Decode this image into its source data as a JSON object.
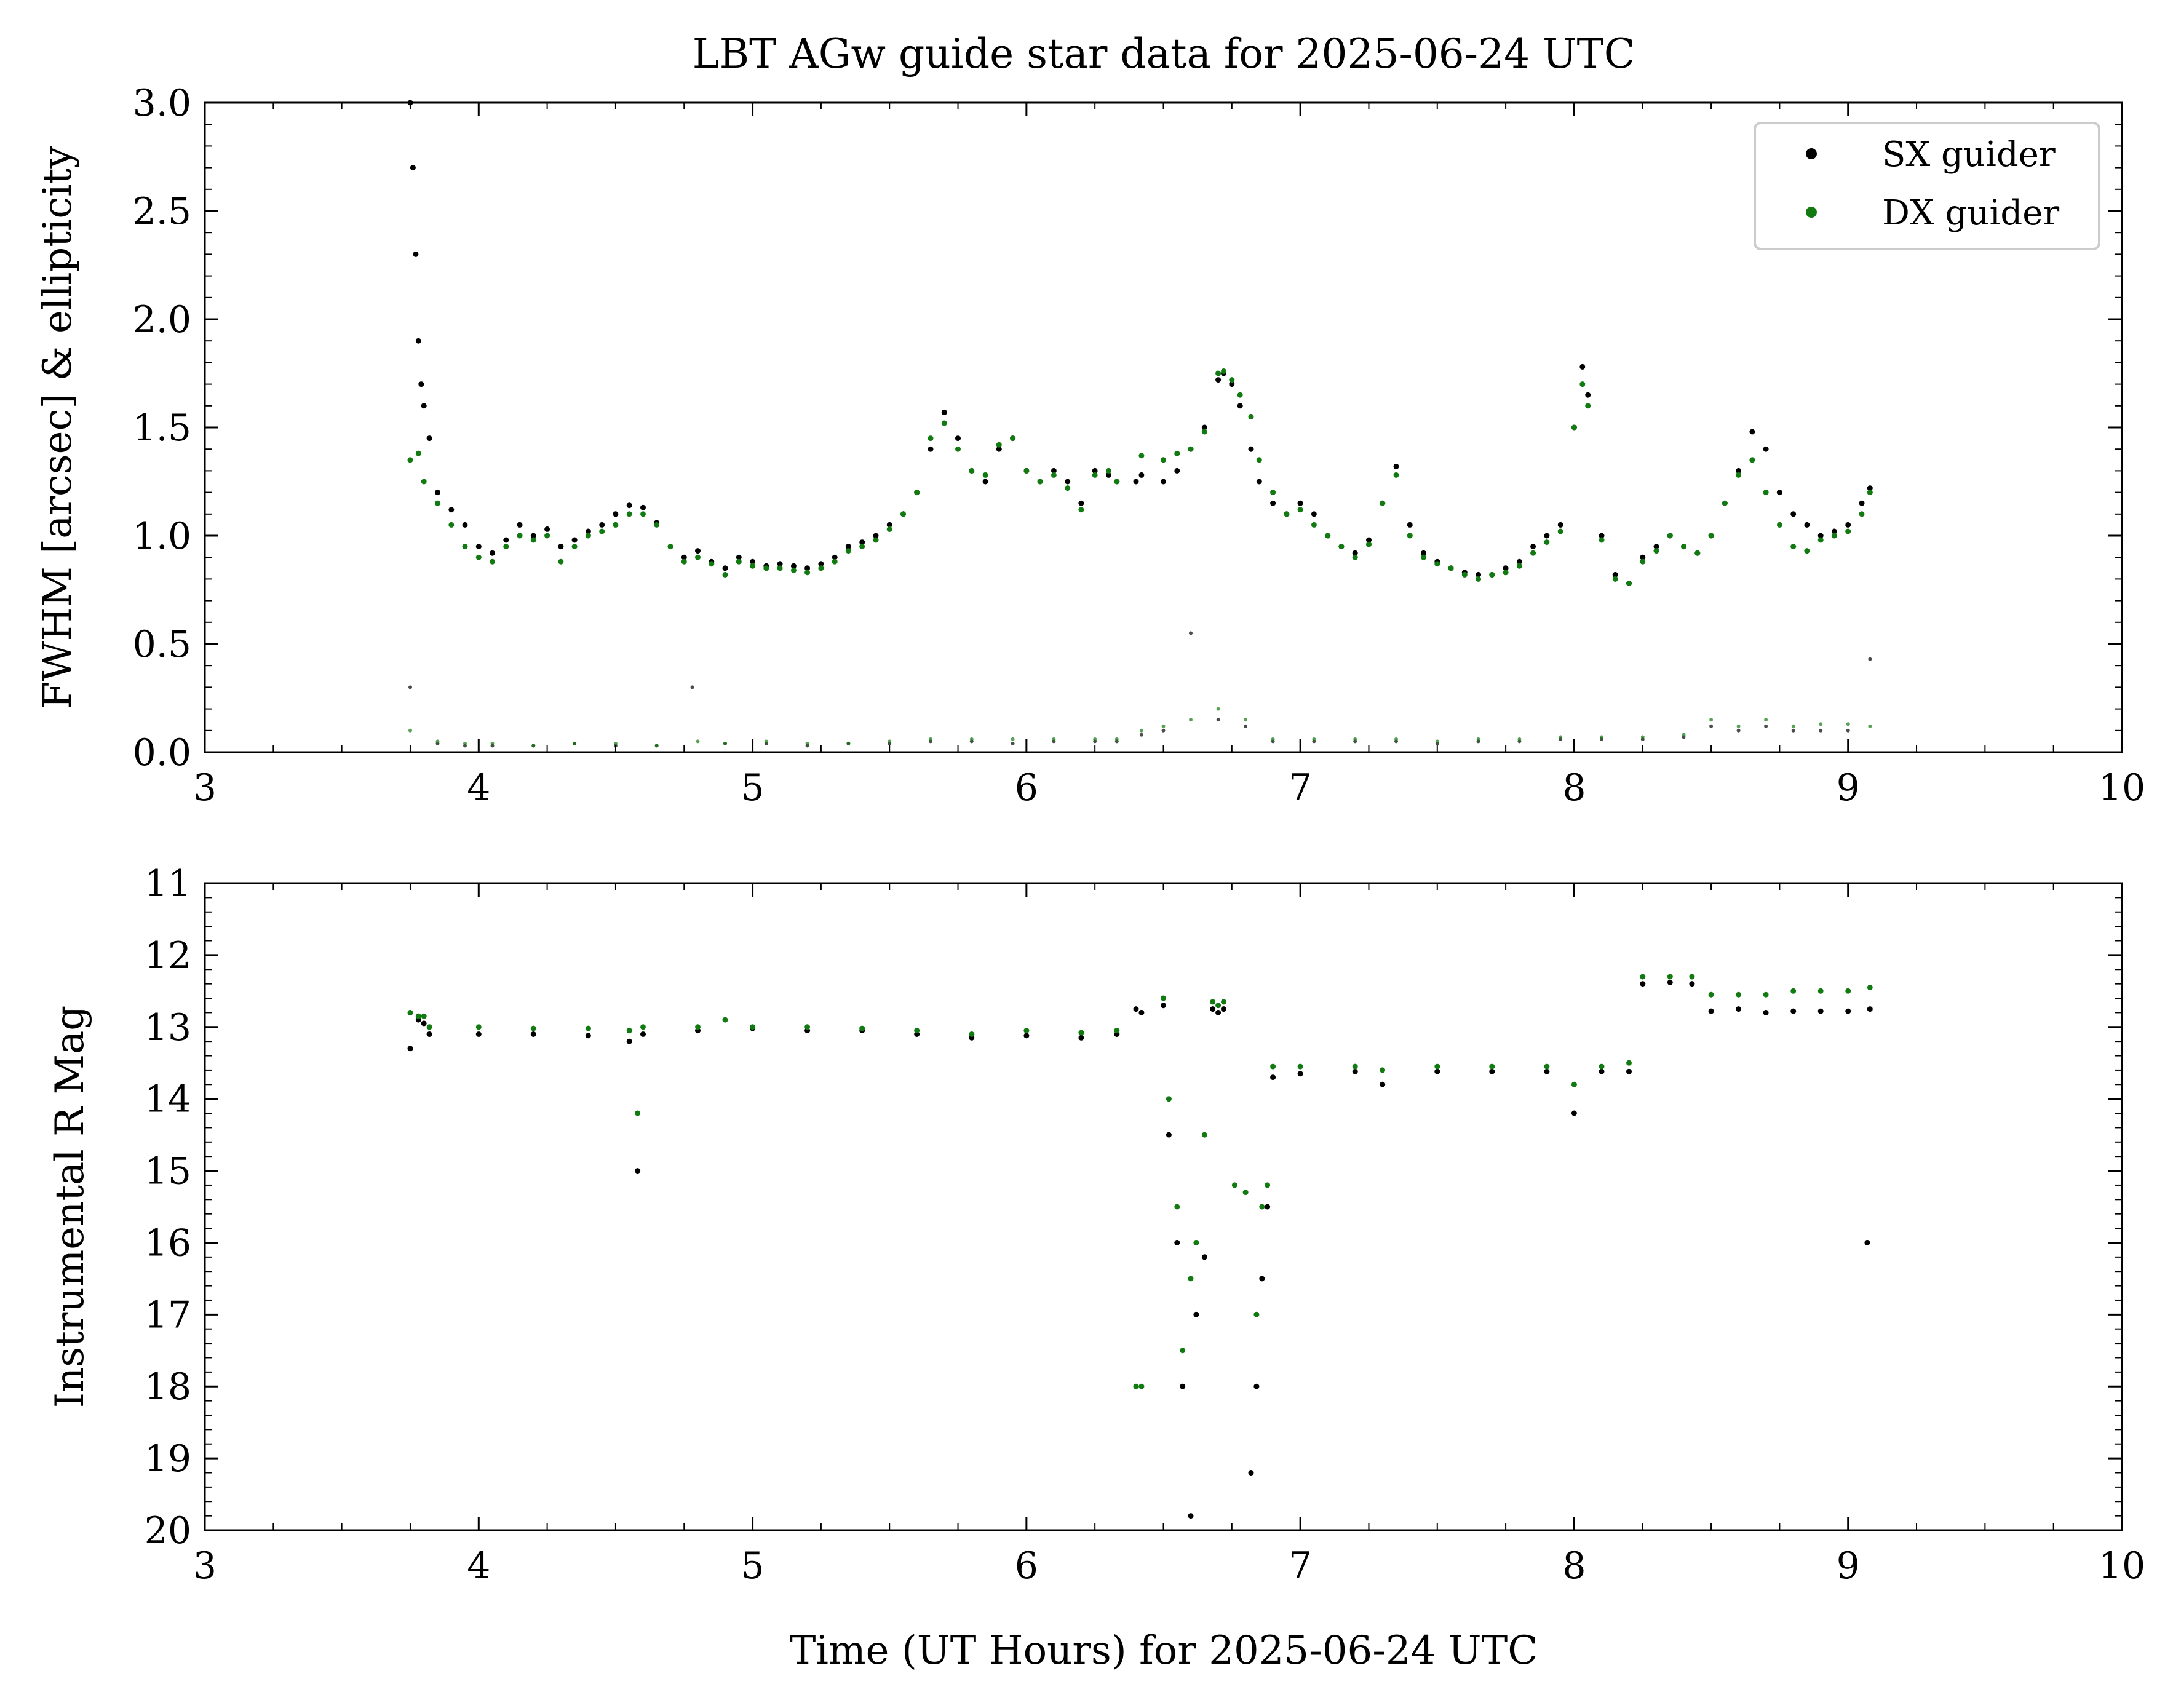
{
  "colors": {
    "sx": "#000000",
    "dx": "#117a11"
  },
  "chart_data": [
    {
      "type": "scatter",
      "title": "LBT AGw guide star data for 2025-06-24 UTC",
      "xlabel": "",
      "ylabel": "FWHM [arcsec] & ellipticity",
      "xlim": [
        3,
        10
      ],
      "ylim": [
        0,
        3.0
      ],
      "xticks": [
        "3",
        "4",
        "5",
        "6",
        "7",
        "8",
        "9",
        "10"
      ],
      "yticks": [
        "0.0",
        "0.5",
        "1.0",
        "1.5",
        "2.0",
        "2.5",
        "3.0"
      ],
      "legend": {
        "position": "top-right",
        "entries": [
          "SX guider",
          "DX guider"
        ]
      },
      "series": [
        {
          "name": "SX guider",
          "metric": "FWHM",
          "x": [
            3.75,
            3.76,
            3.77,
            3.78,
            3.79,
            3.8,
            3.82,
            3.85,
            3.9,
            3.95,
            4.0,
            4.05,
            4.1,
            4.15,
            4.2,
            4.25,
            4.3,
            4.35,
            4.4,
            4.45,
            4.5,
            4.55,
            4.6,
            4.65,
            4.7,
            4.75,
            4.8,
            4.85,
            4.9,
            4.95,
            5.0,
            5.05,
            5.1,
            5.15,
            5.2,
            5.25,
            5.3,
            5.35,
            5.4,
            5.45,
            5.5,
            5.55,
            5.6,
            5.65,
            5.7,
            5.75,
            5.8,
            5.85,
            5.9,
            5.95,
            6.0,
            6.05,
            6.1,
            6.15,
            6.2,
            6.25,
            6.3,
            6.33,
            6.4,
            6.42,
            6.5,
            6.55,
            6.6,
            6.65,
            6.7,
            6.72,
            6.75,
            6.78,
            6.82,
            6.85,
            6.9,
            6.95,
            7.0,
            7.05,
            7.1,
            7.15,
            7.2,
            7.25,
            7.3,
            7.35,
            7.4,
            7.45,
            7.5,
            7.55,
            7.6,
            7.65,
            7.7,
            7.75,
            7.8,
            7.85,
            7.9,
            7.95,
            8.0,
            8.03,
            8.05,
            8.1,
            8.15,
            8.2,
            8.25,
            8.3,
            8.35,
            8.4,
            8.45,
            8.5,
            8.55,
            8.6,
            8.65,
            8.7,
            8.75,
            8.8,
            8.85,
            8.9,
            8.95,
            9.0,
            9.05,
            9.08
          ],
          "y": [
            3.0,
            2.7,
            2.3,
            1.9,
            1.7,
            1.6,
            1.45,
            1.2,
            1.12,
            1.05,
            0.95,
            0.92,
            0.98,
            1.05,
            1.0,
            1.03,
            0.95,
            0.98,
            1.02,
            1.05,
            1.1,
            1.14,
            1.13,
            1.06,
            0.95,
            0.9,
            0.93,
            0.88,
            0.85,
            0.9,
            0.88,
            0.86,
            0.87,
            0.86,
            0.85,
            0.87,
            0.9,
            0.95,
            0.97,
            1.0,
            1.05,
            1.1,
            1.2,
            1.4,
            1.57,
            1.45,
            1.3,
            1.25,
            1.4,
            1.45,
            1.3,
            1.25,
            1.3,
            1.25,
            1.15,
            1.3,
            1.28,
            1.25,
            1.25,
            1.28,
            1.25,
            1.3,
            1.4,
            1.5,
            1.72,
            1.75,
            1.7,
            1.6,
            1.4,
            1.25,
            1.15,
            1.1,
            1.15,
            1.1,
            1.0,
            0.95,
            0.92,
            0.98,
            1.15,
            1.32,
            1.05,
            0.92,
            0.88,
            0.85,
            0.83,
            0.82,
            0.82,
            0.85,
            0.88,
            0.95,
            1.0,
            1.05,
            1.5,
            1.78,
            1.65,
            1.0,
            0.82,
            0.78,
            0.9,
            0.95,
            1.0,
            0.95,
            0.92,
            1.0,
            1.15,
            1.3,
            1.48,
            1.4,
            1.2,
            1.1,
            1.05,
            1.0,
            1.02,
            1.05,
            1.15,
            1.22
          ]
        },
        {
          "name": "DX guider",
          "metric": "FWHM",
          "x": [
            3.75,
            3.78,
            3.8,
            3.85,
            3.9,
            3.95,
            4.0,
            4.05,
            4.1,
            4.15,
            4.2,
            4.25,
            4.3,
            4.35,
            4.4,
            4.45,
            4.5,
            4.55,
            4.6,
            4.65,
            4.7,
            4.75,
            4.8,
            4.85,
            4.9,
            4.95,
            5.0,
            5.05,
            5.1,
            5.15,
            5.2,
            5.25,
            5.3,
            5.35,
            5.4,
            5.45,
            5.5,
            5.55,
            5.6,
            5.65,
            5.7,
            5.75,
            5.8,
            5.85,
            5.9,
            5.95,
            6.0,
            6.05,
            6.1,
            6.15,
            6.2,
            6.25,
            6.3,
            6.33,
            6.42,
            6.5,
            6.55,
            6.6,
            6.65,
            6.7,
            6.72,
            6.75,
            6.78,
            6.82,
            6.85,
            6.9,
            6.95,
            7.0,
            7.05,
            7.1,
            7.15,
            7.2,
            7.25,
            7.3,
            7.35,
            7.4,
            7.45,
            7.5,
            7.55,
            7.6,
            7.65,
            7.7,
            7.75,
            7.8,
            7.85,
            7.9,
            7.95,
            8.0,
            8.03,
            8.05,
            8.1,
            8.15,
            8.2,
            8.25,
            8.3,
            8.35,
            8.4,
            8.45,
            8.5,
            8.55,
            8.6,
            8.65,
            8.7,
            8.75,
            8.8,
            8.85,
            8.9,
            8.95,
            9.0,
            9.05,
            9.08
          ],
          "y": [
            1.35,
            1.38,
            1.25,
            1.15,
            1.05,
            0.95,
            0.9,
            0.88,
            0.95,
            1.0,
            0.98,
            1.0,
            0.88,
            0.95,
            1.0,
            1.02,
            1.05,
            1.1,
            1.1,
            1.05,
            0.95,
            0.88,
            0.9,
            0.87,
            0.82,
            0.88,
            0.86,
            0.85,
            0.85,
            0.84,
            0.83,
            0.85,
            0.88,
            0.93,
            0.95,
            0.98,
            1.03,
            1.1,
            1.2,
            1.45,
            1.52,
            1.4,
            1.3,
            1.28,
            1.42,
            1.45,
            1.3,
            1.25,
            1.28,
            1.22,
            1.12,
            1.28,
            1.3,
            1.25,
            1.37,
            1.35,
            1.38,
            1.4,
            1.48,
            1.75,
            1.76,
            1.72,
            1.65,
            1.55,
            1.35,
            1.2,
            1.1,
            1.12,
            1.05,
            1.0,
            0.95,
            0.9,
            0.96,
            1.15,
            1.28,
            1.0,
            0.9,
            0.87,
            0.85,
            0.82,
            0.8,
            0.82,
            0.83,
            0.86,
            0.92,
            0.97,
            1.02,
            1.5,
            1.7,
            1.6,
            0.98,
            0.8,
            0.78,
            0.88,
            0.93,
            1.0,
            0.95,
            0.92,
            1.0,
            1.15,
            1.28,
            1.35,
            1.2,
            1.05,
            0.95,
            0.93,
            0.98,
            1.0,
            1.02,
            1.1,
            1.2
          ]
        },
        {
          "name": "SX guider",
          "metric": "ellipticity",
          "x": [
            3.75,
            3.85,
            3.95,
            4.05,
            4.2,
            4.35,
            4.5,
            4.65,
            4.78,
            4.9,
            5.05,
            5.2,
            5.35,
            5.5,
            5.65,
            5.8,
            5.95,
            6.1,
            6.25,
            6.33,
            6.42,
            6.5,
            6.6,
            6.7,
            6.8,
            6.9,
            7.05,
            7.2,
            7.35,
            7.5,
            7.65,
            7.8,
            7.95,
            8.1,
            8.25,
            8.4,
            8.5,
            8.6,
            8.7,
            8.8,
            8.9,
            9.0,
            9.08
          ],
          "y": [
            0.3,
            0.04,
            0.03,
            0.03,
            0.03,
            0.04,
            0.03,
            0.03,
            0.3,
            0.04,
            0.04,
            0.03,
            0.04,
            0.04,
            0.05,
            0.05,
            0.04,
            0.05,
            0.05,
            0.05,
            0.08,
            0.1,
            0.55,
            0.15,
            0.12,
            0.05,
            0.05,
            0.05,
            0.05,
            0.04,
            0.05,
            0.05,
            0.06,
            0.06,
            0.06,
            0.07,
            0.12,
            0.1,
            0.12,
            0.1,
            0.1,
            0.1,
            0.43
          ]
        },
        {
          "name": "DX guider",
          "metric": "ellipticity",
          "x": [
            3.75,
            3.85,
            3.95,
            4.05,
            4.2,
            4.35,
            4.5,
            4.65,
            4.8,
            4.9,
            5.05,
            5.2,
            5.35,
            5.5,
            5.65,
            5.8,
            5.95,
            6.1,
            6.25,
            6.33,
            6.42,
            6.5,
            6.6,
            6.7,
            6.8,
            6.9,
            7.05,
            7.2,
            7.35,
            7.5,
            7.65,
            7.8,
            7.95,
            8.1,
            8.25,
            8.4,
            8.5,
            8.6,
            8.7,
            8.8,
            8.9,
            9.0,
            9.08
          ],
          "y": [
            0.1,
            0.05,
            0.04,
            0.04,
            0.03,
            0.04,
            0.04,
            0.03,
            0.05,
            0.04,
            0.05,
            0.04,
            0.04,
            0.05,
            0.06,
            0.06,
            0.06,
            0.06,
            0.06,
            0.06,
            0.1,
            0.12,
            0.15,
            0.2,
            0.15,
            0.06,
            0.06,
            0.06,
            0.06,
            0.05,
            0.06,
            0.06,
            0.07,
            0.07,
            0.07,
            0.08,
            0.15,
            0.12,
            0.15,
            0.12,
            0.13,
            0.13,
            0.12
          ]
        }
      ]
    },
    {
      "type": "scatter",
      "title": "",
      "xlabel": "Time (UT Hours) for 2025-06-24 UTC",
      "ylabel": "Instrumental R Mag",
      "xlim": [
        3,
        10
      ],
      "ylim": [
        20,
        11
      ],
      "y_inverted": true,
      "xticks": [
        "3",
        "4",
        "5",
        "6",
        "7",
        "8",
        "9",
        "10"
      ],
      "yticks": [
        "11",
        "12",
        "13",
        "14",
        "15",
        "16",
        "17",
        "18",
        "19",
        "20"
      ],
      "series": [
        {
          "name": "SX guider",
          "x": [
            3.75,
            3.78,
            3.8,
            3.82,
            4.0,
            4.2,
            4.4,
            4.55,
            4.58,
            4.6,
            4.8,
            5.0,
            5.2,
            5.4,
            5.6,
            5.8,
            6.0,
            6.2,
            6.33,
            6.4,
            6.42,
            6.5,
            6.52,
            6.55,
            6.57,
            6.6,
            6.62,
            6.65,
            6.68,
            6.7,
            6.72,
            6.82,
            6.84,
            6.86,
            6.88,
            6.9,
            7.0,
            7.2,
            7.3,
            7.5,
            7.7,
            7.9,
            8.0,
            8.1,
            8.2,
            8.25,
            8.35,
            8.43,
            8.5,
            8.6,
            8.7,
            8.8,
            8.9,
            9.0,
            9.08,
            9.07
          ],
          "y": [
            13.3,
            12.9,
            12.95,
            13.1,
            13.1,
            13.1,
            13.12,
            13.2,
            15.0,
            13.1,
            13.05,
            13.02,
            13.05,
            13.05,
            13.1,
            13.15,
            13.12,
            13.15,
            13.1,
            12.75,
            12.8,
            12.7,
            14.5,
            16.0,
            18.0,
            19.8,
            17.0,
            16.2,
            12.75,
            12.8,
            12.75,
            19.2,
            18.0,
            16.5,
            15.5,
            13.7,
            13.65,
            13.62,
            13.8,
            13.62,
            13.62,
            13.62,
            14.2,
            13.62,
            13.62,
            12.4,
            12.38,
            12.4,
            12.78,
            12.75,
            12.8,
            12.78,
            12.78,
            12.78,
            12.75,
            16.0
          ]
        },
        {
          "name": "DX guider",
          "x": [
            3.75,
            3.78,
            3.8,
            3.82,
            4.0,
            4.2,
            4.4,
            4.55,
            4.58,
            4.6,
            4.8,
            4.9,
            5.0,
            5.2,
            5.4,
            5.6,
            5.8,
            6.0,
            6.2,
            6.33,
            6.4,
            6.42,
            6.5,
            6.52,
            6.55,
            6.57,
            6.6,
            6.62,
            6.65,
            6.68,
            6.7,
            6.72,
            6.76,
            6.8,
            6.84,
            6.86,
            6.88,
            6.9,
            7.0,
            7.2,
            7.3,
            7.5,
            7.7,
            7.9,
            8.0,
            8.1,
            8.2,
            8.25,
            8.35,
            8.43,
            8.5,
            8.6,
            8.7,
            8.8,
            8.9,
            9.0,
            9.08
          ],
          "y": [
            12.8,
            12.85,
            12.85,
            13.0,
            13.0,
            13.02,
            13.02,
            13.05,
            14.2,
            13.0,
            13.0,
            12.9,
            13.0,
            13.0,
            13.02,
            13.05,
            13.1,
            13.05,
            13.08,
            13.05,
            18.0,
            18.0,
            12.6,
            14.0,
            15.5,
            17.5,
            16.5,
            16.0,
            14.5,
            12.65,
            12.7,
            12.65,
            15.2,
            15.3,
            17.0,
            15.5,
            15.2,
            13.55,
            13.55,
            13.55,
            13.6,
            13.55,
            13.55,
            13.55,
            13.8,
            13.55,
            13.5,
            12.3,
            12.3,
            12.3,
            12.55,
            12.55,
            12.55,
            12.5,
            12.5,
            12.5,
            12.45
          ]
        }
      ]
    }
  ]
}
